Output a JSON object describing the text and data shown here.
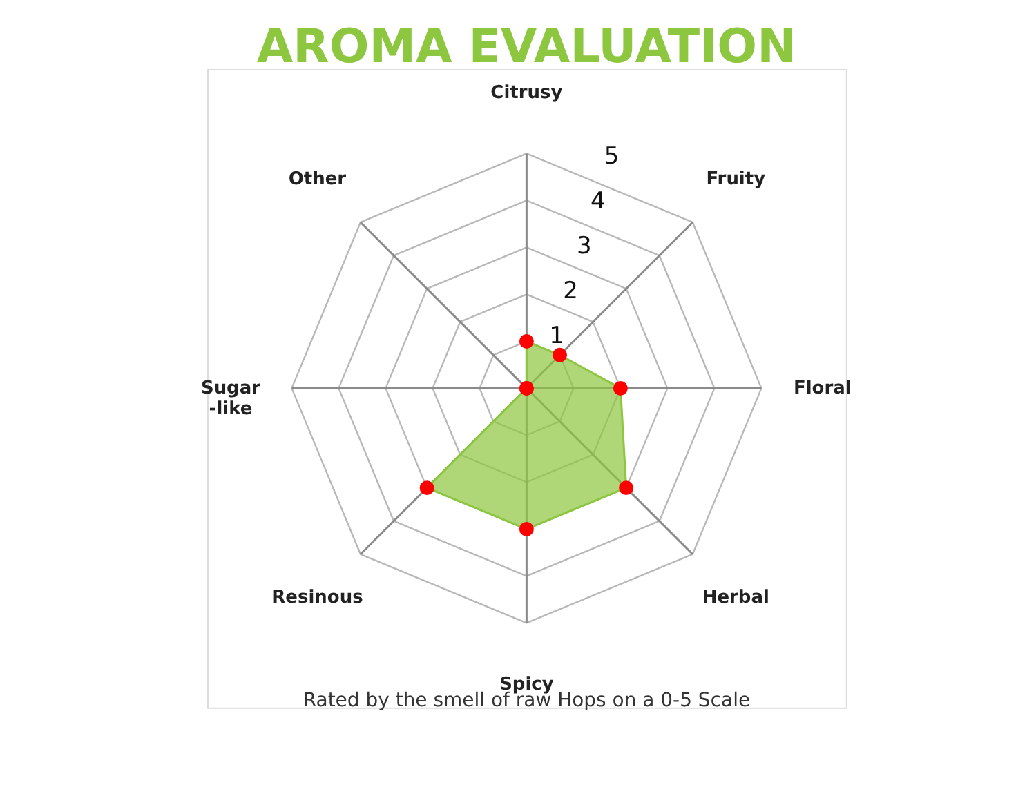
{
  "chart_data": {
    "type": "radar",
    "title": "AROMA EVALUATION",
    "categories": [
      "Citrusy",
      "Fruity",
      "Floral",
      "Herbal",
      "Spicy",
      "Resinous",
      "Sugar\n-like",
      "Other"
    ],
    "series": [
      {
        "color": "#8dc63f",
        "values": [
          1,
          1,
          2,
          3,
          3,
          3,
          0,
          0
        ]
      }
    ],
    "ylim": [
      0,
      5
    ],
    "yticks": [
      1,
      2,
      3,
      4,
      5
    ],
    "grid": true,
    "marker": "circle",
    "annotations": [
      "Rated by the smell of raw Hops on a 0-5 Scale"
    ]
  }
}
